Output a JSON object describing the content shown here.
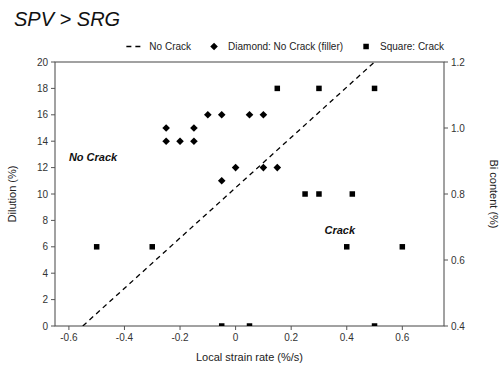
{
  "chart_data": {
    "type": "scatter",
    "title": "SPV > SRG",
    "x_label": "Local strain rate (%/s)",
    "y_label": "Dilution (%)",
    "y2_label": "Bi content (%)",
    "xlim": [
      -0.65,
      0.75
    ],
    "xticks": [
      -0.6,
      -0.4,
      -0.2,
      0,
      0.2,
      0.4,
      0.6
    ],
    "ylim": [
      0,
      20
    ],
    "yticks": [
      0,
      2,
      4,
      6,
      8,
      10,
      12,
      14,
      16,
      18,
      20
    ],
    "y2lim": [
      0.4,
      1.2
    ],
    "y2ticks": [
      0.4,
      0.6,
      0.8,
      {
        "value": 1.0,
        "label": "1.0"
      },
      1.2
    ],
    "grid": false,
    "legend": "top",
    "series": [
      {
        "name": "No Crack",
        "type": "line",
        "line_style": "dashed",
        "color": "black",
        "x": [
          -0.55,
          0.5
        ],
        "values": [
          0,
          20
        ]
      },
      {
        "name": "Diamond: No Crack (filler)",
        "type": "scatter",
        "marker": "diamond",
        "color": "black",
        "x": [
          -0.25,
          -0.25,
          -0.2,
          -0.15,
          -0.15,
          -0.1,
          -0.05,
          -0.05,
          0.0,
          0.05,
          0.1,
          0.1,
          0.15
        ],
        "values": [
          14,
          15,
          14,
          14,
          15,
          16,
          11,
          16,
          12,
          16,
          12,
          16,
          12
        ]
      },
      {
        "name": "Square: Crack",
        "type": "scatter",
        "marker": "square",
        "color": "black",
        "x": [
          -0.5,
          -0.3,
          -0.05,
          0.05,
          0.15,
          0.25,
          0.3,
          0.3,
          0.4,
          0.42,
          0.5,
          0.5,
          0.6
        ],
        "values": [
          6,
          6,
          0,
          0,
          18,
          10,
          10,
          18,
          6,
          10,
          0,
          18,
          6
        ]
      }
    ],
    "annotations": [
      {
        "text": "No Crack",
        "x": -0.6,
        "y": 12.5
      },
      {
        "text": "Crack",
        "x": 0.32,
        "y": 7
      }
    ]
  }
}
